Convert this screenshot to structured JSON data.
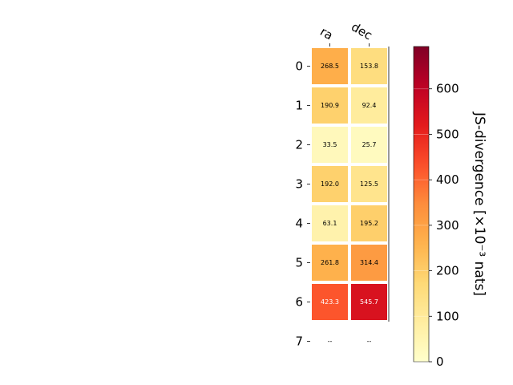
{
  "chart_data": {
    "type": "heatmap",
    "x_categories": [
      "ra",
      "dec"
    ],
    "y_categories": [
      "0",
      "1",
      "2",
      "3",
      "4",
      "5",
      "6",
      "7"
    ],
    "values": [
      [
        268.5,
        153.8
      ],
      [
        190.9,
        92.4
      ],
      [
        33.5,
        25.7
      ],
      [
        192.0,
        125.5
      ],
      [
        63.1,
        195.2
      ],
      [
        261.8,
        314.4
      ],
      [
        423.3,
        545.7
      ],
      [
        null,
        null
      ]
    ],
    "missing_label": "--",
    "colorbar": {
      "label": "JS-divergence [×10⁻³ nats]",
      "range": [
        0,
        693
      ],
      "ticks": [
        0,
        100,
        200,
        300,
        400,
        500,
        600
      ],
      "colormap": "YlOrRd"
    }
  }
}
